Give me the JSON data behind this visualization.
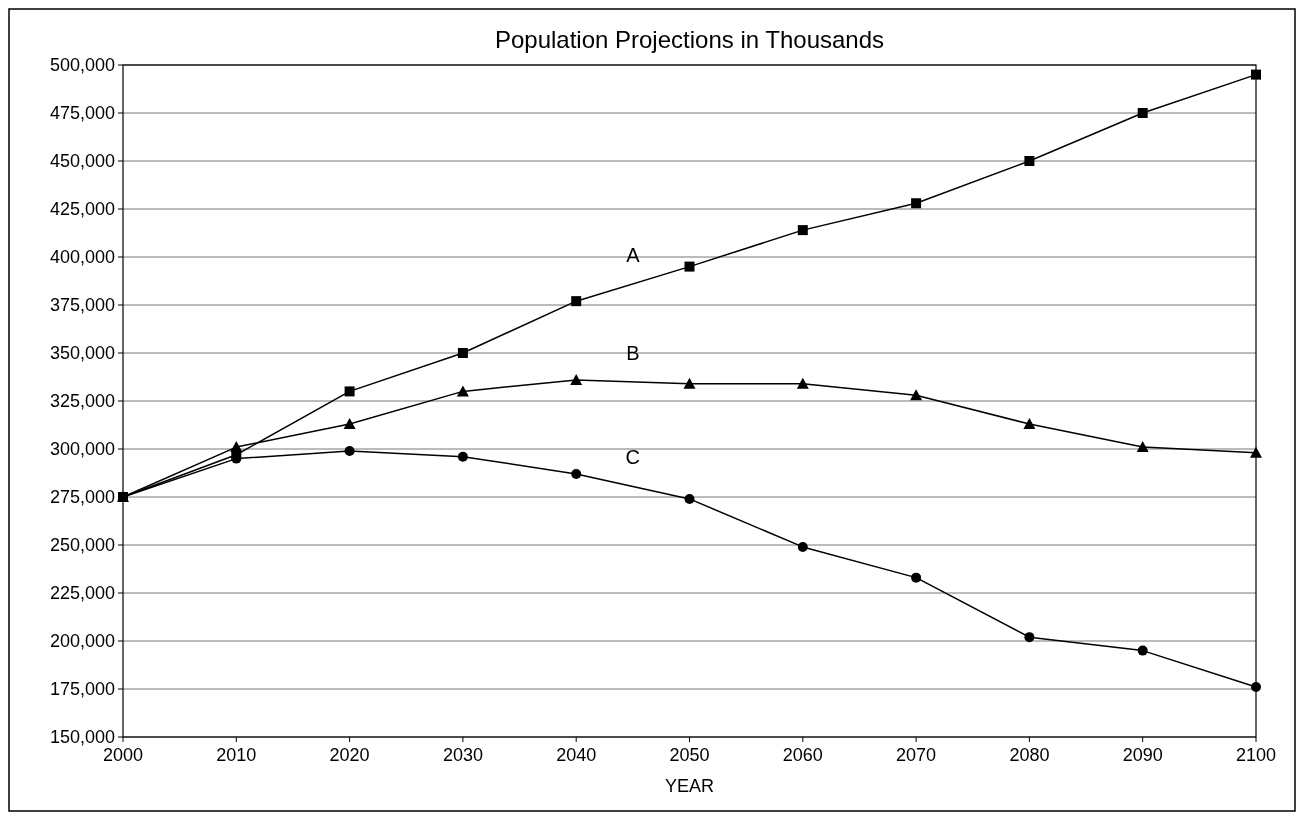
{
  "chart_data": {
    "type": "line",
    "title": "Population Projections in Thousands",
    "xlabel": "YEAR",
    "x": [
      2000,
      2010,
      2020,
      2030,
      2040,
      2050,
      2060,
      2070,
      2080,
      2090,
      2100
    ],
    "xlim": [
      2000,
      2100
    ],
    "xticks": [
      2000,
      2010,
      2020,
      2030,
      2040,
      2050,
      2060,
      2070,
      2080,
      2090,
      2100
    ],
    "ylim": [
      150000,
      500000
    ],
    "yticks": [
      {
        "value": 150000,
        "label": "150,000"
      },
      {
        "value": 175000,
        "label": "175,000"
      },
      {
        "value": 200000,
        "label": "200,000"
      },
      {
        "value": 225000,
        "label": "225,000"
      },
      {
        "value": 250000,
        "label": "250,000"
      },
      {
        "value": 275000,
        "label": "275,000"
      },
      {
        "value": 300000,
        "label": "300,000"
      },
      {
        "value": 325000,
        "label": "325,000"
      },
      {
        "value": 350000,
        "label": "350,000"
      },
      {
        "value": 375000,
        "label": "375,000"
      },
      {
        "value": 400000,
        "label": "400,000"
      },
      {
        "value": 425000,
        "label": "425,000"
      },
      {
        "value": 450000,
        "label": "450,000"
      },
      {
        "value": 475000,
        "label": "475,000"
      },
      {
        "value": 500000,
        "label": "500,000"
      }
    ],
    "grid": "y",
    "series": [
      {
        "name": "A",
        "color": "#000000",
        "marker": "square",
        "values": [
          275000,
          297000,
          330000,
          350000,
          377000,
          395000,
          414000,
          428000,
          450000,
          475000,
          495000
        ]
      },
      {
        "name": "B",
        "color": "#000000",
        "marker": "triangle",
        "values": [
          275000,
          301000,
          313000,
          330000,
          336000,
          334000,
          334000,
          328000,
          313000,
          301000,
          298000
        ]
      },
      {
        "name": "C",
        "color": "#000000",
        "marker": "circle",
        "values": [
          275000,
          295000,
          299000,
          296000,
          287000,
          274000,
          249000,
          233000,
          202000,
          195000,
          176000
        ]
      }
    ]
  }
}
